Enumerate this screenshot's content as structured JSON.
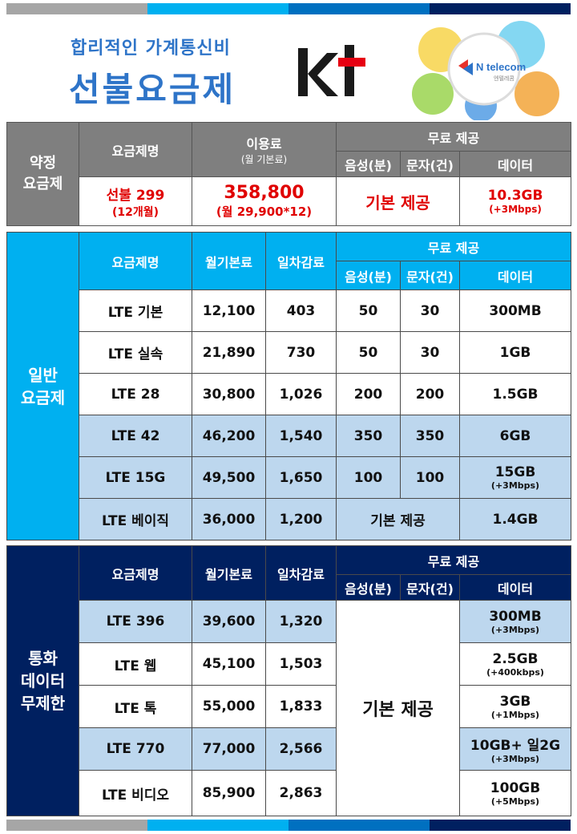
{
  "header": {
    "subtitle": "합리적인 가계통신비",
    "title": "선불요금제",
    "brand": "kt",
    "partner": "N telecom",
    "partner_sub": "엔텔레콤"
  },
  "colors": {
    "gray": "#7f7f7f",
    "sky": "#00b0f0",
    "navy": "#002060",
    "light_blue": "#bdd7ee",
    "red": "#e00000",
    "kt_red": "#e60012"
  },
  "contract": {
    "side_label_1": "약정",
    "side_label_2": "요금제",
    "col_plan": "요금제명",
    "col_fee": "이용료",
    "col_fee_sub": "(월 기본료)",
    "col_free": "무료 제공",
    "col_voice": "음성(분)",
    "col_sms": "문자(건)",
    "col_data": "데이터",
    "plan_name": "선불 299",
    "plan_period": "(12개월)",
    "fee": "358,800",
    "fee_detail": "(월 29,900*12)",
    "basic": "기본 제공",
    "data": "10.3GB",
    "data_extra": "(+3Mbps)"
  },
  "general": {
    "side_label_1": "일반",
    "side_label_2": "요금제",
    "col_plan": "요금제명",
    "col_monthly": "월기본료",
    "col_daily": "일차감료",
    "col_free": "무료 제공",
    "col_voice": "음성(분)",
    "col_sms": "문자(건)",
    "col_data": "데이터",
    "basic": "기본 제공",
    "rows": [
      {
        "name": "LTE 기본",
        "monthly": "12,100",
        "daily": "403",
        "voice": "50",
        "sms": "30",
        "data": "300MB",
        "extra": ""
      },
      {
        "name": "LTE 실속",
        "monthly": "21,890",
        "daily": "730",
        "voice": "50",
        "sms": "30",
        "data": "1GB",
        "extra": ""
      },
      {
        "name": "LTE 28",
        "monthly": "30,800",
        "daily": "1,026",
        "voice": "200",
        "sms": "200",
        "data": "1.5GB",
        "extra": ""
      },
      {
        "name": "LTE 42",
        "monthly": "46,200",
        "daily": "1,540",
        "voice": "350",
        "sms": "350",
        "data": "6GB",
        "extra": ""
      },
      {
        "name": "LTE 15G",
        "monthly": "49,500",
        "daily": "1,650",
        "voice": "100",
        "sms": "100",
        "data": "15GB",
        "extra": "(+3Mbps)"
      },
      {
        "name": "LTE 베이직",
        "monthly": "36,000",
        "daily": "1,200",
        "voice": "",
        "sms": "",
        "data": "1.4GB",
        "extra": ""
      }
    ]
  },
  "unlimited": {
    "side_label_1": "통화",
    "side_label_2": "데이터",
    "side_label_3": "무제한",
    "col_plan": "요금제명",
    "col_monthly": "월기본료",
    "col_daily": "일차감료",
    "col_free": "무료 제공",
    "col_voice": "음성(분)",
    "col_sms": "문자(건)",
    "col_data": "데이터",
    "basic": "기본 제공",
    "rows": [
      {
        "name": "LTE 396",
        "monthly": "39,600",
        "daily": "1,320",
        "data": "300MB",
        "extra": "(+3Mbps)"
      },
      {
        "name": "LTE 웹",
        "monthly": "45,100",
        "daily": "1,503",
        "data": "2.5GB",
        "extra": "(+400kbps)"
      },
      {
        "name": "LTE 톡",
        "monthly": "55,000",
        "daily": "1,833",
        "data": "3GB",
        "extra": "(+1Mbps)"
      },
      {
        "name": "LTE 770",
        "monthly": "77,000",
        "daily": "2,566",
        "data": "10GB+ 일2G",
        "extra": "(+3Mbps)"
      },
      {
        "name": "LTE 비디오",
        "monthly": "85,900",
        "daily": "2,863",
        "data": "100GB",
        "extra": "(+5Mbps)"
      }
    ]
  }
}
